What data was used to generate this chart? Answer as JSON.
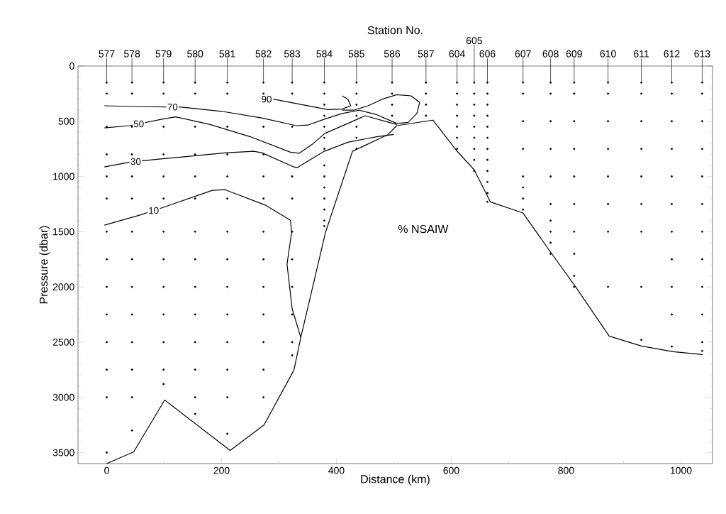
{
  "chart_data": {
    "type": "line",
    "xlabel": "Distance (km)",
    "ylabel": "Pressure (dbar)",
    "xlim": [
      -50,
      1055
    ],
    "xticks": [
      0,
      200,
      400,
      600,
      800,
      1000
    ],
    "ylim": [
      3600,
      0
    ],
    "yticks": [
      0,
      500,
      1000,
      1500,
      2000,
      2500,
      3000,
      3500
    ],
    "annotations": [
      "% NSAIW",
      "Station No.",
      {
        "text": "577",
        "x": 0,
        "y": 150
      },
      {
        "text": "578",
        "x": 44,
        "y": 150
      },
      {
        "text": "579",
        "x": 99,
        "y": 150
      },
      {
        "text": "580",
        "x": 154,
        "y": 150
      },
      {
        "text": "581",
        "x": 210,
        "y": 150
      },
      {
        "text": "582",
        "x": 273,
        "y": 150
      },
      {
        "text": "583",
        "x": 323,
        "y": 150
      },
      {
        "text": "584",
        "x": 379,
        "y": 150
      },
      {
        "text": "585",
        "x": 435,
        "y": 150
      },
      {
        "text": "586",
        "x": 497,
        "y": 150
      },
      {
        "text": "587",
        "x": 556,
        "y": 150
      },
      {
        "text": "604",
        "x": 610,
        "y": 150
      },
      {
        "text": "605",
        "x": 640,
        "y": 150
      },
      {
        "text": "606",
        "x": 663,
        "y": 150
      },
      {
        "text": "607",
        "x": 725,
        "y": 150
      },
      {
        "text": "608",
        "x": 773,
        "y": 150
      },
      {
        "text": "609",
        "x": 814,
        "y": 150
      },
      {
        "text": "610",
        "x": 873,
        "y": 150
      },
      {
        "text": "611",
        "x": 931,
        "y": 150
      },
      {
        "text": "612",
        "x": 984,
        "y": 150
      },
      {
        "text": "613",
        "x": 1037,
        "y": 150
      }
    ],
    "series": [
      {
        "color": "#000000",
        "x": [
          0,
          47,
          101,
          215,
          274,
          326,
          338,
          381,
          428,
          490,
          505,
          568,
          610,
          640,
          668,
          725,
          773,
          816,
          875,
          931,
          986,
          1038
        ],
        "values": [
          3600,
          3494,
          3025,
          3481,
          3250,
          2754,
          2458,
          1506,
          772,
          620,
          540,
          490,
          770,
          940,
          1230,
          1331,
          1686,
          1995,
          2445,
          2535,
          2587,
          2613
        ]
      },
      {
        "name": "10",
        "color": "#000000",
        "x": [
          -4,
          57,
          98,
          184,
          206,
          277,
          320,
          322,
          314,
          323,
          338
        ],
        "values": [
          1441,
          1351,
          1281,
          1126,
          1120,
          1261,
          1396,
          1506,
          1795,
          2200,
          2458
        ]
      },
      {
        "name": "30",
        "color": "#000000",
        "x": [
          -4,
          42,
          91,
          209,
          256,
          270,
          326,
          332,
          344,
          379,
          420,
          470,
          500
        ],
        "values": [
          914,
          869,
          843,
          785,
          772,
          785,
          914,
          920,
          881,
          772,
          690,
          640,
          620
        ]
      },
      {
        "name": "50",
        "color": "#000000",
        "x": [
          -4,
          40,
          98,
          120,
          180,
          250,
          320,
          335,
          360,
          380,
          420,
          450,
          505
        ],
        "values": [
          560,
          540,
          480,
          460,
          530,
          640,
          780,
          790,
          700,
          610,
          520,
          450,
          530
        ]
      },
      {
        "name": "70",
        "color": "#000000",
        "x": [
          -4,
          60,
          130,
          200,
          270,
          330,
          350,
          380,
          410,
          440,
          470,
          505,
          525,
          540,
          545,
          530,
          505,
          480,
          455,
          430,
          410
        ],
        "values": [
          360,
          368,
          372,
          410,
          470,
          540,
          535,
          480,
          430,
          400,
          440,
          520,
          510,
          430,
          330,
          270,
          260,
          300,
          360,
          400,
          400
        ]
      },
      {
        "name": "90",
        "color": "#000000",
        "x": [
          290,
          340,
          385,
          410,
          425,
          420,
          410
        ],
        "values": [
          300,
          350,
          395,
          390,
          360,
          300,
          270
        ]
      },
      {
        "type": "scatter",
        "marker": "circle",
        "color": "#000000",
        "x": [
          0,
          0,
          0,
          0,
          0,
          0,
          0,
          0,
          0,
          0,
          0,
          0,
          0,
          0,
          44,
          44,
          44,
          44,
          44,
          44,
          44,
          44,
          44,
          44,
          44,
          44,
          44,
          44,
          99,
          99,
          99,
          99,
          99,
          99,
          99,
          99,
          99,
          99,
          99,
          99,
          99,
          154,
          154,
          154,
          154,
          154,
          154,
          154,
          154,
          154,
          154,
          154,
          154,
          154,
          154,
          210,
          210,
          210,
          210,
          210,
          210,
          210,
          210,
          210,
          210,
          210,
          210,
          210,
          210,
          273,
          273,
          273,
          273,
          273,
          273,
          273,
          273,
          273,
          273,
          273,
          273,
          273,
          323,
          323,
          323,
          323,
          323,
          323,
          323,
          323,
          323,
          323,
          323,
          379,
          379,
          379,
          379,
          379,
          379,
          379,
          379,
          379,
          379,
          379,
          379,
          379,
          379,
          435,
          435,
          435,
          435,
          435,
          435,
          435,
          497,
          497,
          497,
          497,
          556,
          556,
          556,
          556,
          610,
          610,
          610,
          610,
          610,
          610,
          610,
          640,
          640,
          640,
          640,
          640,
          640,
          640,
          640,
          640,
          663,
          663,
          663,
          663,
          663,
          663,
          663,
          663,
          663,
          663,
          663,
          663,
          725,
          725,
          725,
          725,
          725,
          725,
          725,
          725,
          773,
          773,
          773,
          773,
          773,
          773,
          773,
          773,
          773,
          773,
          814,
          814,
          814,
          814,
          814,
          814,
          814,
          814,
          814,
          814,
          873,
          873,
          873,
          873,
          873,
          873,
          873,
          873,
          931,
          931,
          931,
          931,
          931,
          931,
          931,
          931,
          931,
          984,
          984,
          984,
          984,
          984,
          984,
          984,
          984,
          984,
          984,
          984,
          1037,
          1037,
          1037,
          1037,
          1037,
          1037,
          1037,
          1037,
          1037,
          1037,
          1037,
          1037
        ],
        "values": [
          150,
          250,
          550,
          800,
          1000,
          1200,
          1500,
          1750,
          2000,
          2250,
          2500,
          2750,
          3000,
          3500,
          150,
          250,
          550,
          800,
          1000,
          1200,
          1500,
          1750,
          2000,
          2250,
          2500,
          2750,
          3000,
          3300,
          150,
          250,
          550,
          800,
          1000,
          1200,
          1500,
          1750,
          2000,
          2250,
          2500,
          2750,
          2880,
          150,
          250,
          550,
          800,
          1000,
          1200,
          1500,
          1750,
          2000,
          2250,
          2500,
          2750,
          3000,
          3150,
          150,
          250,
          550,
          800,
          1000,
          1200,
          1500,
          1750,
          2000,
          2250,
          2500,
          2750,
          3000,
          3330,
          150,
          250,
          550,
          800,
          1000,
          1200,
          1500,
          1750,
          2000,
          2250,
          2500,
          2750,
          3000,
          150,
          250,
          550,
          1000,
          1200,
          1500,
          1750,
          2000,
          2250,
          2500,
          2620,
          150,
          250,
          350,
          450,
          550,
          650,
          750,
          900,
          1000,
          1100,
          1200,
          1300,
          1400,
          1450,
          150,
          250,
          350,
          450,
          550,
          650,
          750,
          150,
          250,
          350,
          450,
          150,
          250,
          350,
          450,
          150,
          250,
          350,
          450,
          550,
          650,
          750,
          150,
          250,
          350,
          450,
          550,
          650,
          750,
          850,
          950,
          150,
          250,
          350,
          450,
          550,
          650,
          750,
          850,
          950,
          1050,
          1150,
          1230,
          150,
          250,
          500,
          750,
          1000,
          1100,
          1200,
          1300,
          150,
          250,
          500,
          750,
          1000,
          1250,
          1400,
          1500,
          1600,
          1700,
          150,
          250,
          500,
          750,
          1000,
          1250,
          1500,
          1700,
          1900,
          2000,
          150,
          250,
          500,
          750,
          1000,
          1250,
          1500,
          2000,
          150,
          250,
          500,
          750,
          1000,
          1250,
          1500,
          2000,
          2480,
          150,
          250,
          500,
          750,
          1000,
          1250,
          1500,
          1750,
          2000,
          2250,
          2540,
          150,
          250,
          500,
          750,
          1000,
          1250,
          1500,
          1750,
          2000,
          2250,
          2500,
          2580
        ]
      }
    ]
  }
}
